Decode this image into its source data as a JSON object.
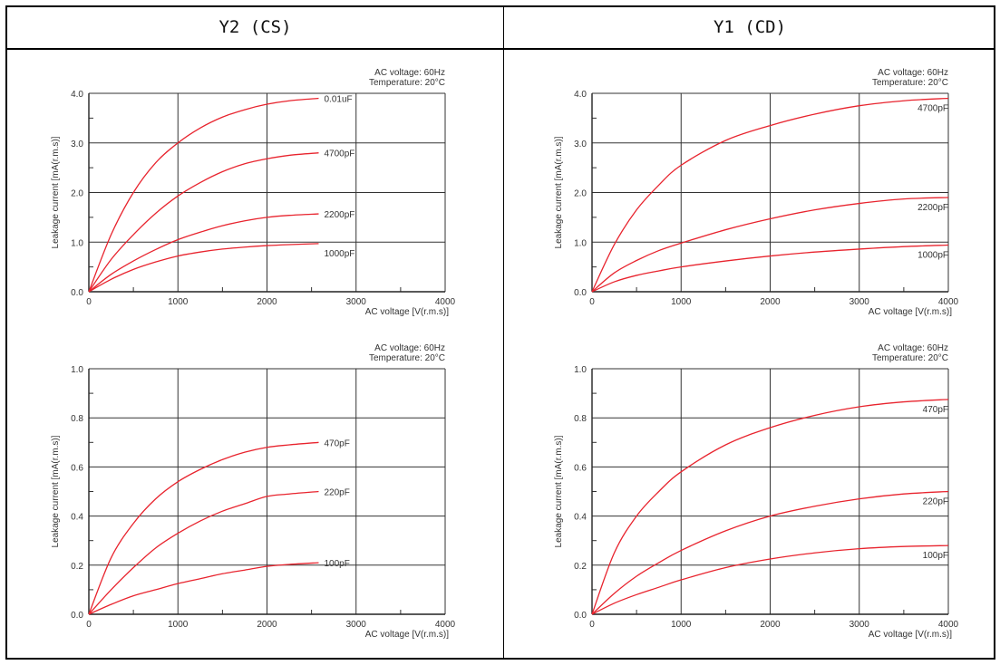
{
  "header": {
    "left": "Y2 (CS)",
    "right": "Y1 (CD)"
  },
  "chart_data": [
    {
      "type": "line",
      "id": "y2-upper",
      "notes": [
        "AC voltage: 60Hz",
        "Temperature: 20°C"
      ],
      "xlabel": "AC voltage [V(r.m.s)]",
      "ylabel": "Leakage current [mA(r.m.s)]",
      "xlim": [
        0,
        4000
      ],
      "ylim": [
        0,
        4
      ],
      "xticks": [
        0,
        1000,
        2000,
        3000,
        4000
      ],
      "xtick_labels": [
        "0",
        "1000",
        "2000",
        "3000",
        "4000"
      ],
      "yticks": [
        0,
        1,
        2,
        3,
        4
      ],
      "ytick_labels": [
        "0.0",
        "1.0",
        "2.0",
        "3.0",
        "4.0"
      ],
      "color": "#e8242e",
      "series": [
        {
          "name": "0.01uF",
          "x": [
            0,
            250,
            500,
            750,
            1000,
            1250,
            1500,
            1750,
            2000,
            2250,
            2580
          ],
          "y": [
            0,
            1.15,
            2.0,
            2.6,
            3.0,
            3.3,
            3.52,
            3.67,
            3.78,
            3.85,
            3.9
          ]
        },
        {
          "name": "4700pF",
          "x": [
            0,
            250,
            500,
            750,
            1000,
            1250,
            1500,
            1750,
            2000,
            2250,
            2580
          ],
          "y": [
            0,
            0.65,
            1.15,
            1.58,
            1.93,
            2.2,
            2.42,
            2.58,
            2.68,
            2.75,
            2.8
          ]
        },
        {
          "name": "2200pF",
          "x": [
            0,
            250,
            500,
            750,
            1000,
            1250,
            1500,
            1750,
            2000,
            2250,
            2580
          ],
          "y": [
            0,
            0.35,
            0.62,
            0.85,
            1.05,
            1.2,
            1.33,
            1.43,
            1.5,
            1.54,
            1.57
          ]
        },
        {
          "name": "1000pF",
          "x": [
            0,
            250,
            500,
            750,
            1000,
            1250,
            1500,
            1750,
            2000,
            2250,
            2580
          ],
          "y": [
            0,
            0.25,
            0.45,
            0.6,
            0.72,
            0.8,
            0.86,
            0.9,
            0.93,
            0.95,
            0.97
          ]
        }
      ]
    },
    {
      "type": "line",
      "id": "y1-upper",
      "notes": [
        "AC voltage: 60Hz",
        "Temperature: 20°C"
      ],
      "xlabel": "AC voltage [V(r.m.s)]",
      "ylabel": "Leakage current [mA(r.m.s)]",
      "xlim": [
        0,
        4000
      ],
      "ylim": [
        0,
        4
      ],
      "xticks": [
        0,
        1000,
        2000,
        3000,
        4000
      ],
      "xtick_labels": [
        "0",
        "1000",
        "2000",
        "3000",
        "4000"
      ],
      "yticks": [
        0,
        1,
        2,
        3,
        4
      ],
      "ytick_labels": [
        "0.0",
        "1.0",
        "2.0",
        "3.0",
        "4.0"
      ],
      "color": "#e8242e",
      "series": [
        {
          "name": "4700pF",
          "x": [
            0,
            250,
            500,
            750,
            1000,
            1500,
            2000,
            2500,
            3000,
            3500,
            4000
          ],
          "y": [
            0,
            0.95,
            1.65,
            2.15,
            2.55,
            3.05,
            3.35,
            3.58,
            3.75,
            3.85,
            3.9
          ]
        },
        {
          "name": "2200pF",
          "x": [
            0,
            250,
            500,
            750,
            1000,
            1500,
            2000,
            2500,
            3000,
            3500,
            4000
          ],
          "y": [
            0,
            0.38,
            0.63,
            0.83,
            0.98,
            1.25,
            1.47,
            1.65,
            1.78,
            1.87,
            1.9
          ]
        },
        {
          "name": "1000pF",
          "x": [
            0,
            250,
            500,
            750,
            1000,
            1500,
            2000,
            2500,
            3000,
            3500,
            4000
          ],
          "y": [
            0,
            0.2,
            0.33,
            0.42,
            0.5,
            0.62,
            0.72,
            0.8,
            0.86,
            0.91,
            0.94
          ]
        }
      ]
    },
    {
      "type": "line",
      "id": "y2-lower",
      "notes": [
        "AC voltage: 60Hz",
        "Temperature: 20°C"
      ],
      "xlabel": "AC voltage [V(r.m.s)]",
      "ylabel": "Leakage current [mA(r.m.s)]",
      "xlim": [
        0,
        4000
      ],
      "ylim": [
        0,
        1
      ],
      "xticks": [
        0,
        1000,
        2000,
        3000,
        4000
      ],
      "xtick_labels": [
        "0",
        "1000",
        "2000",
        "3000",
        "4000"
      ],
      "yticks": [
        0,
        0.2,
        0.4,
        0.6,
        0.8,
        1.0
      ],
      "ytick_labels": [
        "0.0",
        "0.2",
        "0.4",
        "0.6",
        "0.8",
        "1.0"
      ],
      "color": "#e8242e",
      "series": [
        {
          "name": "470pF",
          "x": [
            0,
            250,
            500,
            750,
            1000,
            1250,
            1500,
            1750,
            2000,
            2250,
            2580
          ],
          "y": [
            0,
            0.23,
            0.37,
            0.47,
            0.54,
            0.59,
            0.63,
            0.66,
            0.68,
            0.69,
            0.7
          ]
        },
        {
          "name": "220pF",
          "x": [
            0,
            250,
            500,
            750,
            1000,
            1250,
            1500,
            1750,
            2000,
            2250,
            2580
          ],
          "y": [
            0,
            0.1,
            0.19,
            0.27,
            0.33,
            0.38,
            0.42,
            0.45,
            0.48,
            0.49,
            0.5
          ]
        },
        {
          "name": "100pF",
          "x": [
            0,
            250,
            500,
            750,
            1000,
            1250,
            1500,
            1750,
            2000,
            2250,
            2580
          ],
          "y": [
            0,
            0.04,
            0.075,
            0.1,
            0.125,
            0.145,
            0.165,
            0.18,
            0.195,
            0.203,
            0.21
          ]
        }
      ]
    },
    {
      "type": "line",
      "id": "y1-lower",
      "notes": [
        "AC voltage: 60Hz",
        "Temperature: 20°C"
      ],
      "xlabel": "AC voltage [V(r.m.s)]",
      "ylabel": "Leakage current [mA(r.m.s)]",
      "xlim": [
        0,
        4000
      ],
      "ylim": [
        0,
        1
      ],
      "xticks": [
        0,
        1000,
        2000,
        3000,
        4000
      ],
      "xtick_labels": [
        "0",
        "1000",
        "2000",
        "3000",
        "4000"
      ],
      "yticks": [
        0,
        0.2,
        0.4,
        0.6,
        0.8,
        1.0
      ],
      "ytick_labels": [
        "0.0",
        "0.2",
        "0.4",
        "0.6",
        "0.8",
        "1.0"
      ],
      "color": "#e8242e",
      "series": [
        {
          "name": "470pF",
          "x": [
            0,
            250,
            500,
            750,
            1000,
            1500,
            2000,
            2500,
            3000,
            3500,
            4000
          ],
          "y": [
            0,
            0.25,
            0.4,
            0.5,
            0.58,
            0.69,
            0.76,
            0.81,
            0.845,
            0.865,
            0.875
          ]
        },
        {
          "name": "220pF",
          "x": [
            0,
            250,
            500,
            750,
            1000,
            1500,
            2000,
            2500,
            3000,
            3500,
            4000
          ],
          "y": [
            0,
            0.085,
            0.155,
            0.21,
            0.26,
            0.34,
            0.4,
            0.44,
            0.47,
            0.49,
            0.5
          ]
        },
        {
          "name": "100pF",
          "x": [
            0,
            250,
            500,
            750,
            1000,
            1500,
            2000,
            2500,
            3000,
            3500,
            4000
          ],
          "y": [
            0,
            0.045,
            0.08,
            0.11,
            0.14,
            0.19,
            0.225,
            0.25,
            0.267,
            0.276,
            0.28
          ]
        }
      ]
    }
  ]
}
